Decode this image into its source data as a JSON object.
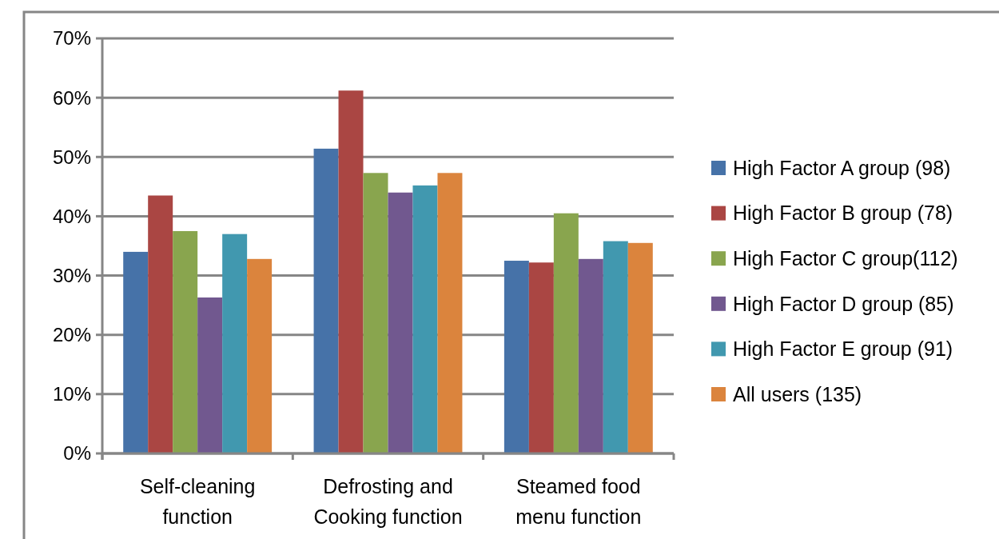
{
  "chart_data": {
    "type": "bar",
    "categories": [
      "Self-cleaning function",
      "Defrosting and Cooking function",
      "Steamed food menu function"
    ],
    "series": [
      {
        "name": "High Factor A group (98)",
        "color": "#4672a8",
        "values": [
          34.0,
          51.4,
          32.5
        ]
      },
      {
        "name": "High Factor B group (78)",
        "color": "#aa4643",
        "values": [
          43.5,
          61.2,
          32.2
        ]
      },
      {
        "name": "High Factor C group(112)",
        "color": "#89a54e",
        "values": [
          37.5,
          47.3,
          40.5
        ]
      },
      {
        "name": "High Factor D group (85)",
        "color": "#71588f",
        "values": [
          26.3,
          44.0,
          32.8
        ]
      },
      {
        "name": "High Factor E group (91)",
        "color": "#4198af",
        "values": [
          37.0,
          45.2,
          35.8
        ]
      },
      {
        "name": "All users (135)",
        "color": "#db843d",
        "values": [
          32.8,
          47.3,
          35.5
        ]
      }
    ],
    "ylim": [
      0,
      70
    ],
    "yticks": [
      {
        "value": 0,
        "label": "0%"
      },
      {
        "value": 10,
        "label": "10%"
      },
      {
        "value": 20,
        "label": "20%"
      },
      {
        "value": 30,
        "label": "30%"
      },
      {
        "value": 40,
        "label": "40%"
      },
      {
        "value": 50,
        "label": "50%"
      },
      {
        "value": 60,
        "label": "60%"
      },
      {
        "value": 70,
        "label": "70%"
      }
    ],
    "grid": "y",
    "legend": "right"
  }
}
